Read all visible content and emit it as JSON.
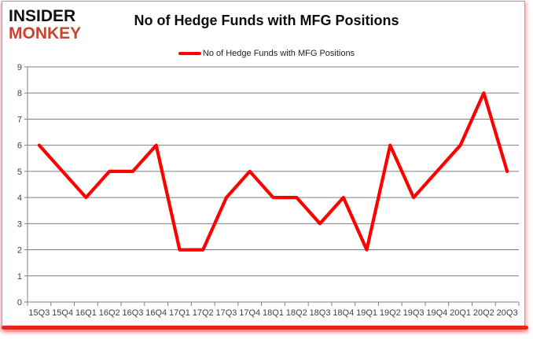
{
  "logo": {
    "line1": "INSIDER",
    "line2": "MONKEY"
  },
  "header": {
    "title": "No of Hedge Funds with MFG Positions"
  },
  "legend": {
    "label": "No of Hedge Funds with MFG Positions"
  },
  "colors": {
    "line": "#ff0000",
    "logo_accent": "#c8432f",
    "grid": "#808080",
    "axis": "#808080",
    "axis_text": "#3f3f3f",
    "bottom_bar": "#e8251b"
  },
  "chart_data": {
    "type": "line",
    "title": "No of Hedge Funds with MFG Positions",
    "series_name": "No of Hedge Funds with MFG Positions",
    "categories": [
      "15Q3",
      "15Q4",
      "16Q1",
      "16Q2",
      "16Q3",
      "16Q4",
      "17Q1",
      "17Q2",
      "17Q3",
      "17Q4",
      "18Q1",
      "18Q2",
      "18Q3",
      "18Q4",
      "19Q1",
      "19Q2",
      "19Q3",
      "19Q4",
      "20Q1",
      "20Q2",
      "20Q3"
    ],
    "values": [
      6,
      5,
      4,
      5,
      5,
      6,
      2,
      2,
      4,
      5,
      4,
      4,
      3,
      4,
      2,
      6,
      4,
      5,
      6,
      8,
      5
    ],
    "xlabel": "",
    "ylabel": "",
    "ylim": [
      0,
      9
    ],
    "y_ticks": [
      0,
      1,
      2,
      3,
      4,
      5,
      6,
      7,
      8,
      9
    ],
    "grid": true,
    "legend_position": "top"
  }
}
